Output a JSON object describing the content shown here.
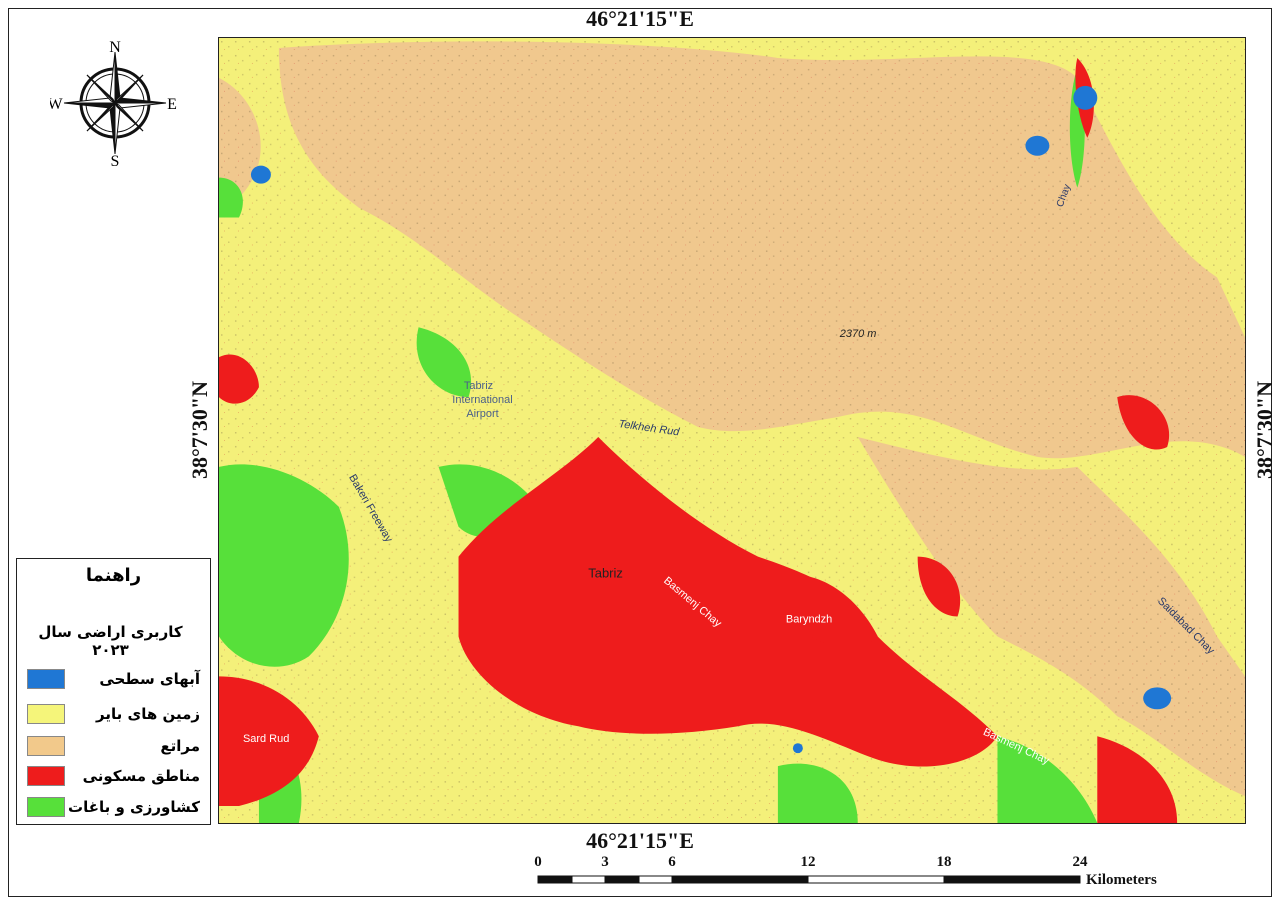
{
  "coords": {
    "top": "46°21'15\"E",
    "bottom": "46°21'15\"E",
    "left": "38°7'30\"N",
    "right": "38°7'30\"N"
  },
  "compass": {
    "n": "N",
    "s": "S",
    "e": "E",
    "w": "W"
  },
  "legend": {
    "title": "راهنما",
    "subtitle": "کاربری اراضی سال ۲۰۲۳",
    "items": [
      {
        "label": "آبهای سطحی",
        "color": "#1f77d4"
      },
      {
        "label": "زمین های بایر",
        "color": "#f5f57a"
      },
      {
        "label": "مراتع",
        "color": "#f2c98b"
      },
      {
        "label": "مناطق مسکونی",
        "color": "#ee1c1c"
      },
      {
        "label": "کشاورزی و باغات",
        "color": "#57e03a"
      }
    ]
  },
  "map_labels": {
    "tabriz": "Tabriz",
    "airport1": "Tabriz",
    "airport2": "International",
    "airport3": "Airport",
    "telkheh": "Telkheh Rud",
    "bakeri": "Bakeri Freeway",
    "basmenj": "Basmenj Chay",
    "basmenj2": "Basmenj Chay",
    "baryndzh": "Baryndzh",
    "peak": "2370 m",
    "sardrud": "Sard Rud",
    "chay_ne": "Chay",
    "saidabad": "Saidabad Chay"
  },
  "scale": {
    "ticks": [
      "0",
      "3",
      "6",
      "12",
      "18",
      "24"
    ],
    "unit": "Kilometers"
  }
}
